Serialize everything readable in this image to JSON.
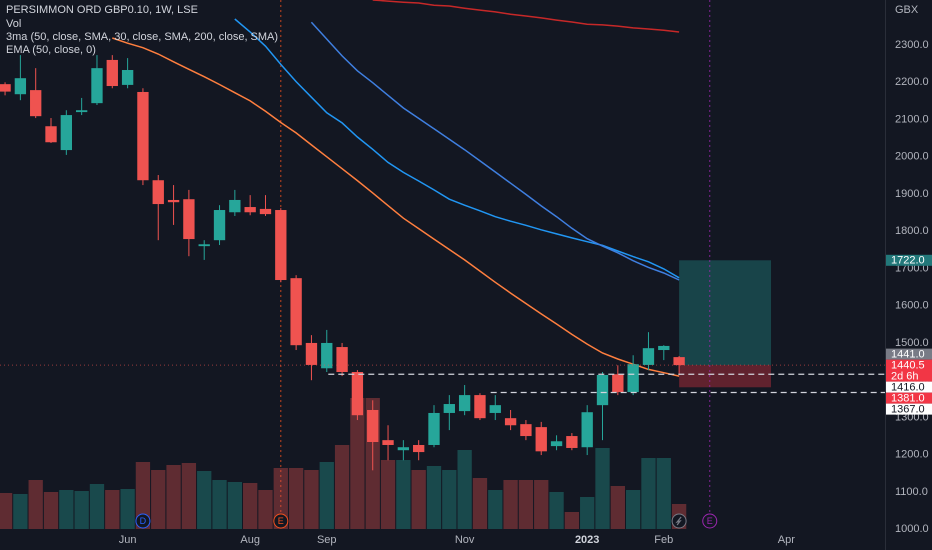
{
  "chart_data": {
    "type": "candlestick",
    "title": "PERSIMMON ORD GBP0.10, 1W, LSE",
    "indicators": [
      "Vol",
      "3ma (50, close, SMA, 30, close, SMA, 200, close, SMA)",
      "EMA (50, close, 0)"
    ],
    "currency": "GBX",
    "ylim": [
      944,
      2421
    ],
    "xlim": [
      -0.33,
      57.44
    ],
    "yticks": [
      {
        "value": 2300,
        "label": "2300.0"
      },
      {
        "value": 2200,
        "label": "2200.0"
      },
      {
        "value": 2100,
        "label": "2100.0"
      },
      {
        "value": 2000,
        "label": "2000.0"
      },
      {
        "value": 1900,
        "label": "1900.0"
      },
      {
        "value": 1800,
        "label": "1800.0"
      },
      {
        "value": 1700,
        "label": "1700.0"
      },
      {
        "value": 1600,
        "label": "1600.0"
      },
      {
        "value": 1500,
        "label": "1500.0"
      },
      {
        "value": 1400,
        "label": "1400.0"
      },
      {
        "value": 1300,
        "label": "1300.0"
      },
      {
        "value": 1200,
        "label": "1200.0"
      },
      {
        "value": 1100,
        "label": "1100.0"
      },
      {
        "value": 1000,
        "label": "1000.0"
      }
    ],
    "xticks": [
      {
        "value": 8,
        "label": "Jun"
      },
      {
        "value": 16,
        "label": "Aug"
      },
      {
        "value": 21,
        "label": "Sep"
      },
      {
        "value": 30,
        "label": "Nov"
      },
      {
        "value": 38,
        "label": "2023",
        "bold": true
      },
      {
        "value": 43,
        "label": "Feb"
      },
      {
        "value": 51,
        "label": "Apr"
      }
    ],
    "up_color": "#26a69a",
    "down_color": "#ef5350",
    "ohlc": {
      "open": [
        2195,
        2168,
        2179,
        2082,
        2018,
        2120,
        2144,
        2260,
        2193,
        2174,
        1937,
        1884,
        1886,
        1760,
        1776,
        1851,
        1865,
        1860,
        1857,
        1674,
        1500,
        1432,
        1489,
        1422,
        1320,
        1239,
        1212,
        1226,
        1226,
        1312,
        1317,
        1360,
        1312,
        1298,
        1282,
        1274,
        1223,
        1250,
        1220,
        1333,
        1416,
        1368,
        1441,
        1481,
        1462
      ],
      "high": [
        2200,
        2273,
        2238,
        2104,
        2125,
        2158,
        2273,
        2273,
        2265,
        2184,
        1951,
        1924,
        1911,
        1776,
        1870,
        1911,
        1897,
        1897,
        1862,
        1682,
        1521,
        1535,
        1500,
        1427,
        1346,
        1279,
        1239,
        1239,
        1333,
        1360,
        1387,
        1365,
        1360,
        1320,
        1293,
        1288,
        1252,
        1258,
        1333,
        1422,
        1440,
        1467,
        1529,
        1494,
        1465
      ],
      "low": [
        2165,
        2152,
        2104,
        2037,
        2005,
        2112,
        2139,
        2184,
        2184,
        1924,
        1776,
        1817,
        1733,
        1723,
        1763,
        1841,
        1843,
        1841,
        1663,
        1481,
        1400,
        1422,
        1411,
        1293,
        1158,
        1185,
        1185,
        1185,
        1220,
        1266,
        1306,
        1293,
        1293,
        1266,
        1239,
        1199,
        1212,
        1212,
        1199,
        1239,
        1360,
        1360,
        1427,
        1454,
        1414
      ],
      "close": [
        2175,
        2211,
        2109,
        2039,
        2112,
        2125,
        2238,
        2190,
        2233,
        1937,
        1873,
        1878,
        1779,
        1765,
        1857,
        1884,
        1851,
        1846,
        1669,
        1494,
        1441,
        1500,
        1422,
        1306,
        1234,
        1226,
        1220,
        1207,
        1312,
        1336,
        1360,
        1298,
        1333,
        1279,
        1250,
        1209,
        1236,
        1218,
        1314,
        1414,
        1368,
        1443,
        1486,
        1492,
        1440.5
      ]
    },
    "volume": [
      36,
      35,
      49,
      37,
      39,
      38,
      45,
      39,
      40,
      67,
      59,
      64,
      66,
      58,
      49,
      47,
      46,
      39,
      61,
      61,
      59,
      67,
      84,
      131,
      131,
      69,
      69,
      59,
      63,
      59,
      79,
      51,
      39,
      49,
      49,
      49,
      37,
      17,
      32,
      81,
      43,
      39,
      71,
      71,
      25
    ],
    "series": [
      {
        "color": "#c62828",
        "values": [
          null,
          null,
          null,
          null,
          null,
          null,
          null,
          null,
          null,
          null,
          null,
          null,
          null,
          null,
          null,
          null,
          null,
          null,
          null,
          null,
          null,
          null,
          null,
          null,
          2421,
          2418,
          2415,
          2413,
          2407,
          2405,
          2399,
          2394,
          2389,
          2383,
          2378,
          2373,
          2367,
          2362,
          2356,
          2354,
          2351,
          2346,
          2343,
          2340,
          2335
        ]
      },
      {
        "color": "#2196f3",
        "values": [
          null,
          null,
          null,
          null,
          null,
          null,
          null,
          null,
          null,
          null,
          null,
          null,
          null,
          null,
          null,
          2370,
          2335,
          2297,
          2248,
          2202,
          2160,
          2118,
          2091,
          2053,
          2020,
          1985,
          1958,
          1935,
          1911,
          1886,
          1870,
          1855,
          1839,
          1827,
          1816,
          1804,
          1793,
          1782,
          1772,
          1762,
          1747,
          1732,
          1718,
          1699,
          1675
        ]
      },
      {
        "color": "#3f7fe0",
        "values": [
          null,
          null,
          null,
          null,
          null,
          null,
          null,
          null,
          null,
          null,
          null,
          null,
          null,
          null,
          null,
          null,
          null,
          null,
          null,
          null,
          2361,
          2316,
          2271,
          2231,
          2199,
          2165,
          2131,
          2103,
          2075,
          2047,
          2019,
          1989,
          1959,
          1929,
          1899,
          1868,
          1839,
          1808,
          1780,
          1760,
          1742,
          1721,
          1703,
          1688,
          1669
        ]
      },
      {
        "color": "#ff7f3f",
        "values": [
          null,
          null,
          null,
          null,
          null,
          null,
          null,
          2319,
          2305,
          2293,
          2276,
          2255,
          2235,
          2215,
          2194,
          2172,
          2150,
          2122,
          2092,
          2064,
          2032,
          2000,
          1968,
          1936,
          1903,
          1869,
          1835,
          1807,
          1779,
          1751,
          1723,
          1693,
          1663,
          1634,
          1606,
          1578,
          1551,
          1523,
          1497,
          1473,
          1457,
          1443,
          1429,
          1420,
          1411
        ]
      }
    ],
    "position": {
      "entry": 1440.5,
      "target": 1722,
      "stop": 1381,
      "start": 44,
      "end": 50
    },
    "levels": [
      {
        "value": 1416,
        "from": 21.1,
        "color": "#d1d4dc"
      },
      {
        "value": 1367,
        "from": 31.7,
        "color": "#d1d4dc"
      }
    ],
    "axis_labels": [
      {
        "value": 1722,
        "label": "1722.0",
        "background": "#22787a",
        "color": "#ffffff"
      },
      {
        "value": 1441,
        "label": "1441.0",
        "background": "#787b86",
        "color": "#ffffff"
      },
      {
        "value": 1440.5,
        "label": "1440.5",
        "note": "2d 6h",
        "background": "#f23645",
        "color": "#ffffff"
      },
      {
        "value": 1416,
        "label": "1416.0",
        "background": "#ffffff",
        "color": "#131722"
      },
      {
        "value": 1381,
        "label": "1381.0",
        "background": "#f23645",
        "color": "#ffffff"
      },
      {
        "value": 1367,
        "label": "1367.0",
        "background": "#ffffff",
        "color": "#131722"
      }
    ],
    "events": [
      {
        "at": 9,
        "label": "D",
        "color": "#2962ff"
      },
      {
        "at": 18,
        "label": "E",
        "color": "#f4511e",
        "line": true
      },
      {
        "at": 44,
        "icon": "flash",
        "color": "#787b86"
      },
      {
        "at": 46,
        "label": "E",
        "color": "#9c27b0",
        "line": true
      }
    ]
  }
}
